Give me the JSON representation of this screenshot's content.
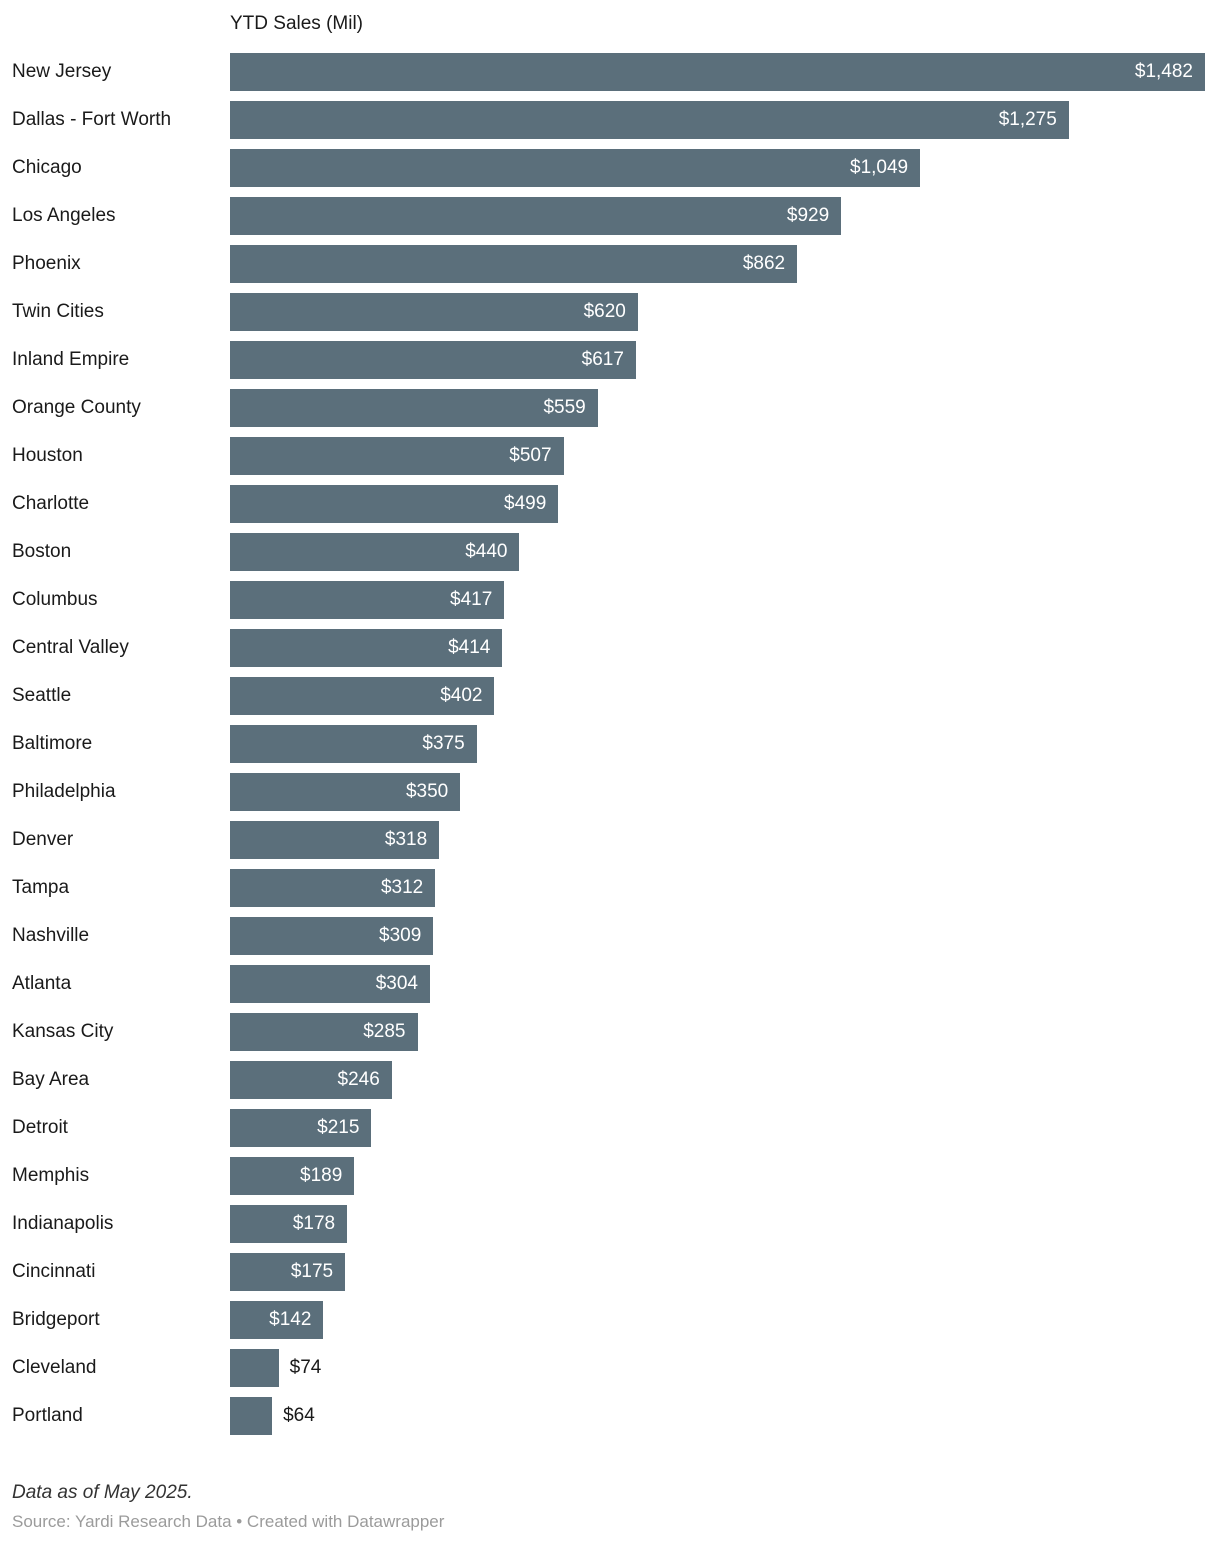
{
  "chart_data": {
    "type": "bar",
    "orientation": "horizontal",
    "title": "YTD Sales (Mil)",
    "categories": [
      "New Jersey",
      "Dallas - Fort Worth",
      "Chicago",
      "Los Angeles",
      "Phoenix",
      "Twin Cities",
      "Inland Empire",
      "Orange County",
      "Houston",
      "Charlotte",
      "Boston",
      "Columbus",
      "Central Valley",
      "Seattle",
      "Baltimore",
      "Philadelphia",
      "Denver",
      "Tampa",
      "Nashville",
      "Atlanta",
      "Kansas City",
      "Bay Area",
      "Detroit",
      "Memphis",
      "Indianapolis",
      "Cincinnati",
      "Bridgeport",
      "Cleveland",
      "Portland"
    ],
    "values": [
      1482,
      1275,
      1049,
      929,
      862,
      620,
      617,
      559,
      507,
      499,
      440,
      417,
      414,
      402,
      375,
      350,
      318,
      312,
      309,
      304,
      285,
      246,
      215,
      189,
      178,
      175,
      142,
      74,
      64
    ],
    "value_labels": [
      "$1,482",
      "$1,275",
      "$1,049",
      "$929",
      "$862",
      "$620",
      "$617",
      "$559",
      "$507",
      "$499",
      "$440",
      "$417",
      "$414",
      "$402",
      "$375",
      "$350",
      "$318",
      "$312",
      "$309",
      "$304",
      "$285",
      "$246",
      "$215",
      "$189",
      "$178",
      "$175",
      "$142",
      "$74",
      "$64"
    ],
    "xlim": [
      0,
      1482
    ],
    "bar_color": "#5b6f7b",
    "inside_label_threshold": 120,
    "xlabel": "",
    "ylabel": "",
    "grid": false,
    "legend": false
  },
  "footer": {
    "note": "Data as of May 2025.",
    "source": "Source: Yardi Research Data • Created with Datawrapper"
  }
}
